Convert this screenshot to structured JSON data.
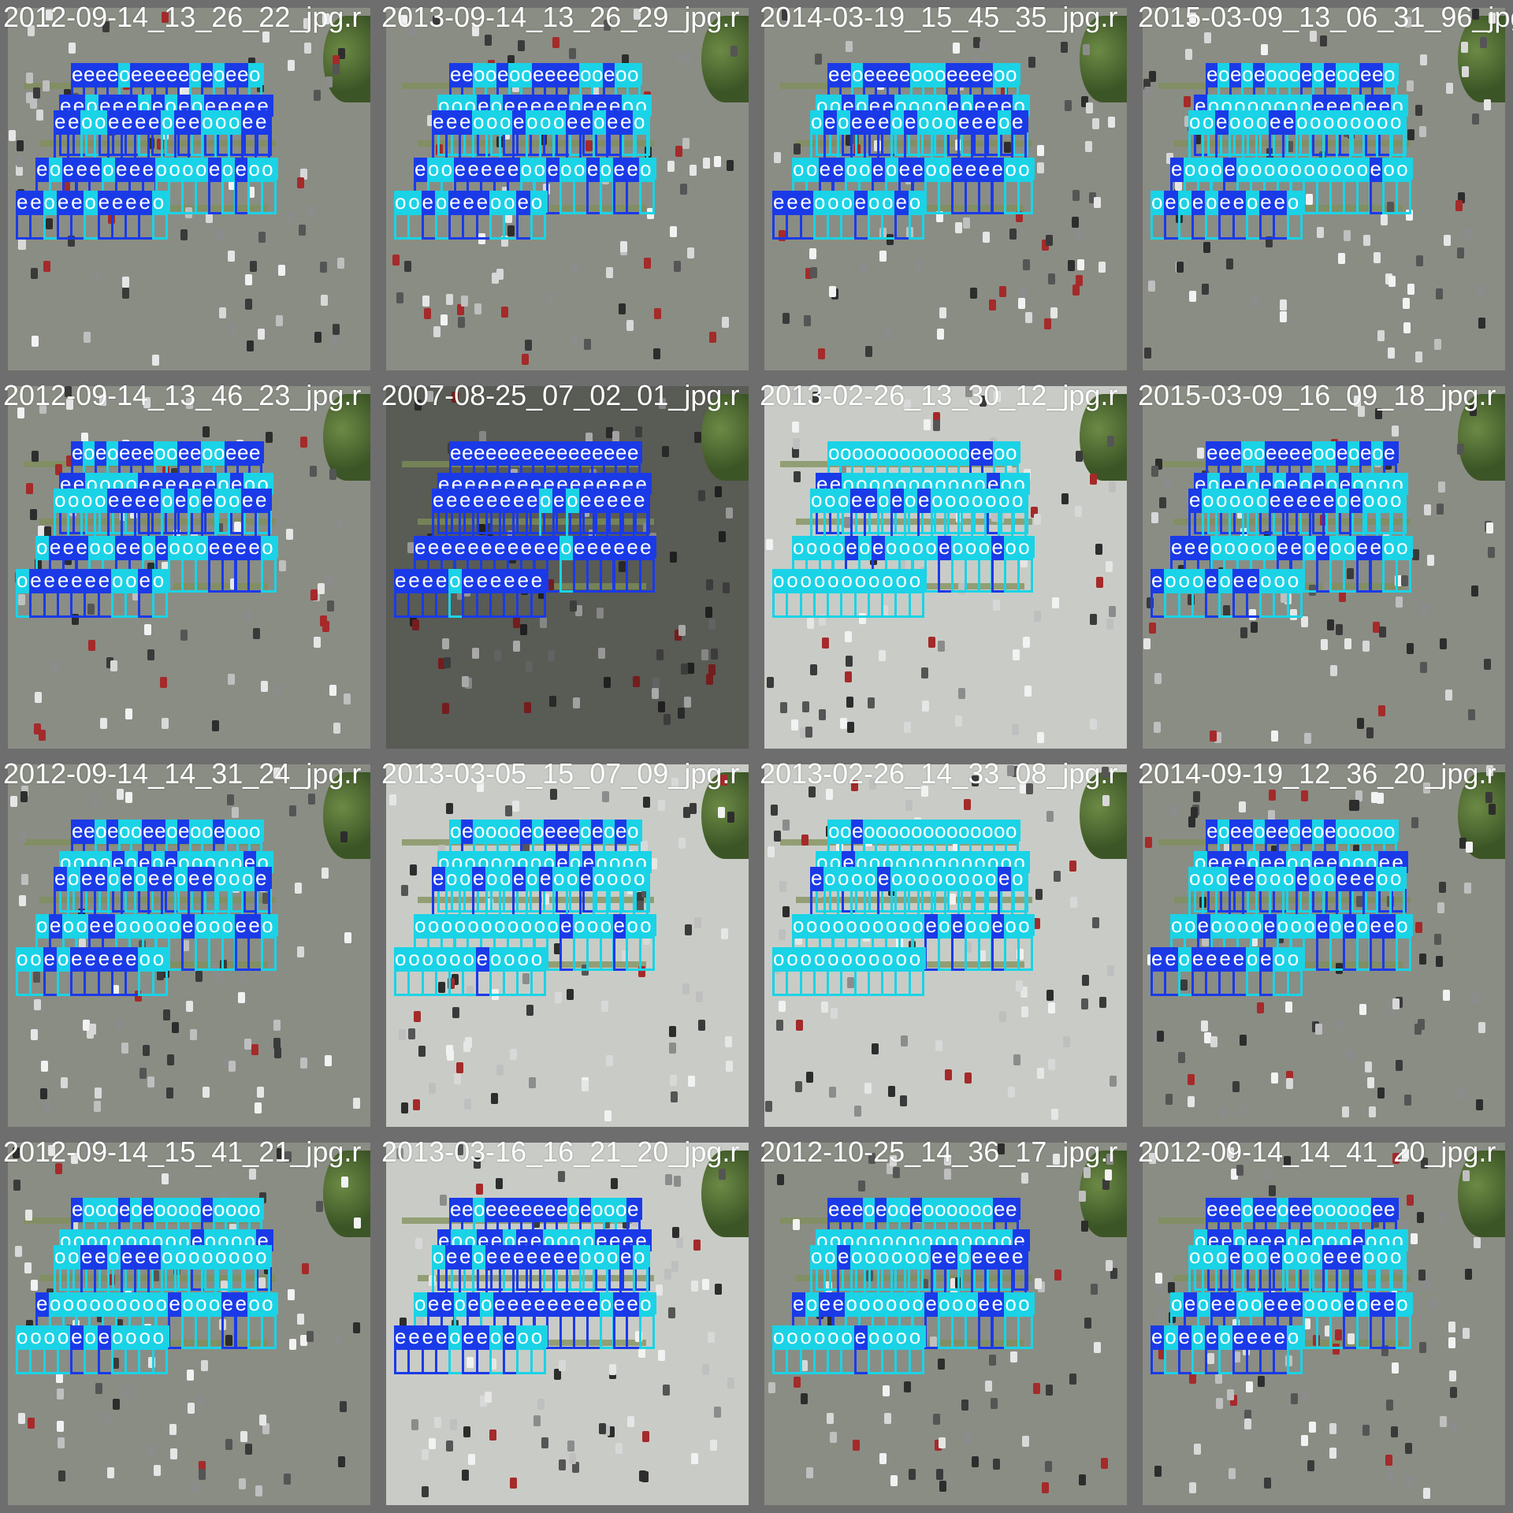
{
  "mosaic": {
    "columns": 4,
    "rows": 4,
    "class_labels": {
      "empty": "e",
      "occupied": "o"
    },
    "class_colors": {
      "empty": "#1a3ae8",
      "occupied": "#1ad3e6"
    },
    "tiles": [
      {
        "filename": "2012-09-14_13_26_22_jpg.r",
        "lighting": "normal",
        "occupied_ratio": 0.35
      },
      {
        "filename": "2013-09-14_13_26_29_jpg.r",
        "lighting": "normal",
        "occupied_ratio": 0.55
      },
      {
        "filename": "2014-03-19_15_45_35_jpg.r",
        "lighting": "normal",
        "occupied_ratio": 0.5
      },
      {
        "filename": "2015-03-09_13_06_31_96_jpg.r",
        "lighting": "normal",
        "occupied_ratio": 0.65
      },
      {
        "filename": "2012-09-14_13_46_23_jpg.r",
        "lighting": "normal",
        "occupied_ratio": 0.4
      },
      {
        "filename": "2007-08-25_07_02_01_jpg.r",
        "lighting": "dark",
        "occupied_ratio": 0.05
      },
      {
        "filename": "2013-02-26_13_30_12_jpg.r",
        "lighting": "bright",
        "occupied_ratio": 0.92
      },
      {
        "filename": "2015-03-09_16_09_18_jpg.r",
        "lighting": "normal",
        "occupied_ratio": 0.55
      },
      {
        "filename": "2012-09-14_14_31_24_jpg.r",
        "lighting": "normal",
        "occupied_ratio": 0.55
      },
      {
        "filename": "2013-03-05_15_07_09_jpg.r",
        "lighting": "bright",
        "occupied_ratio": 0.8
      },
      {
        "filename": "2013-02-26_14_33_08_jpg.r",
        "lighting": "bright",
        "occupied_ratio": 0.92
      },
      {
        "filename": "2014-09-19_12_36_20_jpg.r",
        "lighting": "normal",
        "occupied_ratio": 0.5
      },
      {
        "filename": "2012-09-14_15_41_21_jpg.r",
        "lighting": "normal",
        "occupied_ratio": 0.8
      },
      {
        "filename": "2013-03-16_16_21_20_jpg.r",
        "lighting": "bright",
        "occupied_ratio": 0.35
      },
      {
        "filename": "2012-10-25_14_36_17_jpg.r",
        "lighting": "normal",
        "occupied_ratio": 0.65
      },
      {
        "filename": "2012-09-14_14_41_20_jpg.r",
        "lighting": "normal",
        "occupied_ratio": 0.6
      }
    ]
  }
}
